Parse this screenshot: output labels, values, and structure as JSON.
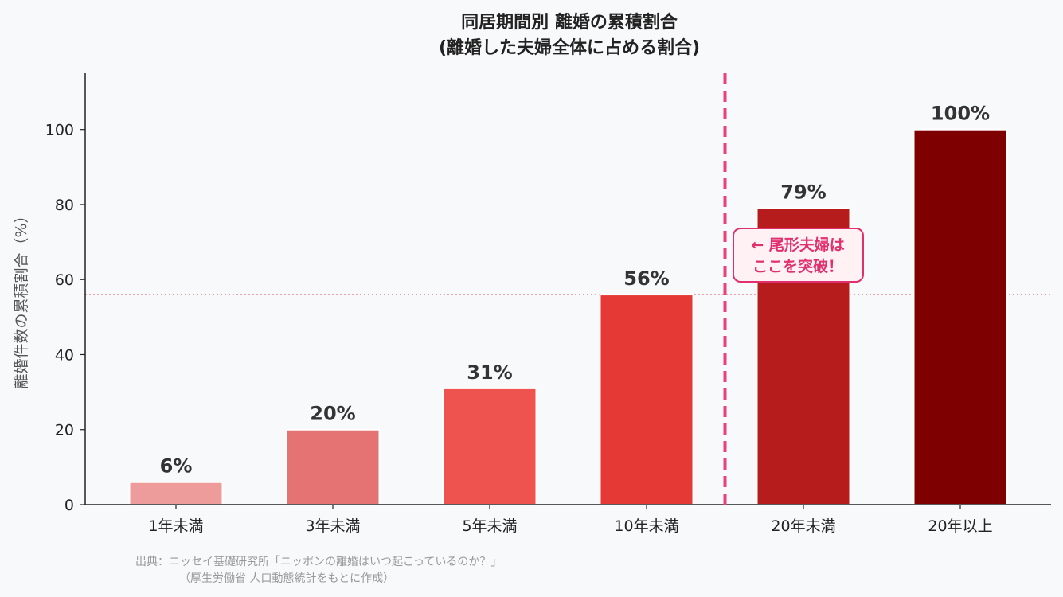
{
  "chart_data": {
    "type": "bar",
    "title_lines": [
      "同居期間別 離婚の累積割合",
      "(離婚した夫婦全体に占める割合)"
    ],
    "categories": [
      "1年未満",
      "3年未満",
      "5年未満",
      "10年未満",
      "20年未満",
      "20年以上"
    ],
    "values": [
      6,
      20,
      31,
      56,
      79,
      100
    ],
    "value_labels": [
      "6%",
      "20%",
      "31%",
      "56%",
      "79%",
      "100%"
    ],
    "bar_colors": [
      "#ee9b9b",
      "#e57373",
      "#ef5350",
      "#e53935",
      "#b71c1c",
      "#7f0000"
    ],
    "ylabel": "離婚件数の累積割合（%）",
    "ylim": [
      0,
      115
    ],
    "yticks": [
      0,
      20,
      40,
      60,
      80,
      100
    ],
    "reference_hline": {
      "value": 56,
      "color": "#e57373",
      "style": "dotted"
    },
    "reference_vline": {
      "between": [
        "10年未満",
        "20年未満"
      ],
      "color": "#ec407a",
      "style": "dashed"
    },
    "annotation": {
      "lines": [
        "← 尾形夫婦は",
        "ここを突破！"
      ],
      "color": "#e0306e",
      "anchor_value": 65
    },
    "source_lines": [
      "出典：ニッセイ基礎研究所「ニッポンの離婚はいつ起こっているのか？」",
      "（厚生労働省 人口動態統計をもとに作成）"
    ]
  }
}
